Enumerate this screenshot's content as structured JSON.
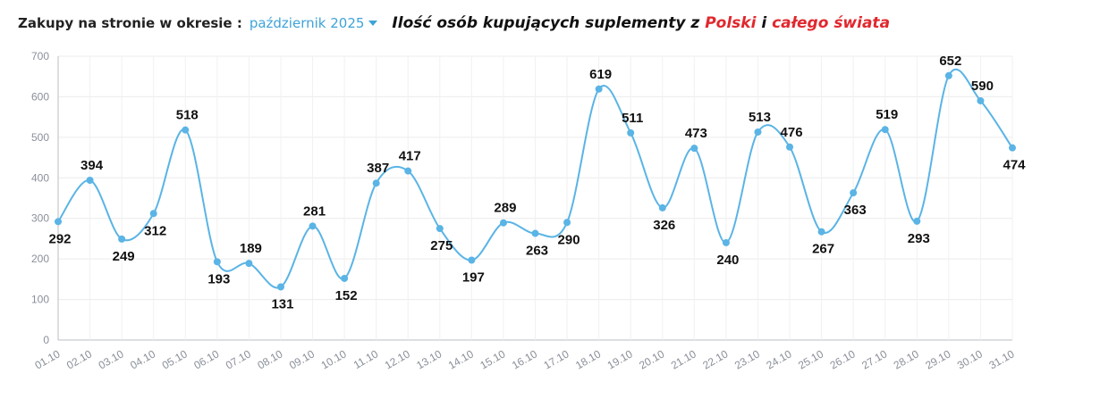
{
  "header": {
    "period_label": "Zakupy na stronie w okresie :",
    "period_value": "październik 2025",
    "title_prefix": "Ilość osób kupujących suplementy z ",
    "title_red_1": "Polski",
    "title_mid": " i ",
    "title_red_2": "całego świata"
  },
  "colors": {
    "line": "#5ab4e5",
    "accent": "#3ea3d8",
    "highlight_red": "#e0282e"
  },
  "chart_data": {
    "type": "line",
    "title": "Ilość osób kupujących suplementy z Polski i całego świata",
    "xlabel": "",
    "ylabel": "",
    "ylim": [
      0,
      700
    ],
    "yticks": [
      0,
      100,
      200,
      300,
      400,
      500,
      600,
      700
    ],
    "grid": true,
    "smooth": true,
    "categories": [
      "01.10",
      "02.10",
      "03.10",
      "04.10",
      "05.10",
      "06.10",
      "07.10",
      "08.10",
      "09.10",
      "10.10",
      "11.10",
      "12.10",
      "13.10",
      "14.10",
      "15.10",
      "16.10",
      "17.10",
      "18.10",
      "19.10",
      "20.10",
      "21.10",
      "22.10",
      "23.10",
      "24.10",
      "25.10",
      "26.10",
      "27.10",
      "28.10",
      "29.10",
      "30.10",
      "31.10"
    ],
    "values": [
      292,
      394,
      249,
      312,
      518,
      193,
      189,
      131,
      281,
      152,
      387,
      417,
      275,
      197,
      289,
      263,
      290,
      619,
      511,
      326,
      473,
      240,
      513,
      476,
      267,
      363,
      519,
      293,
      652,
      590,
      474
    ]
  }
}
